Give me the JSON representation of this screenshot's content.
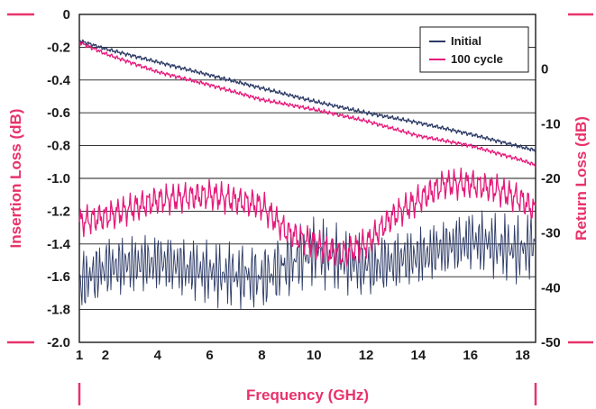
{
  "chart_data": {
    "type": "line",
    "xlabel": "Frequency (GHz)",
    "ylabel_left": "Insertion Loss (dB)",
    "ylabel_right": "Return Loss (dB)",
    "xlim": [
      1,
      18.5
    ],
    "ylim_left": [
      -2.0,
      0
    ],
    "ylim_right": [
      -50,
      10
    ],
    "x_ticks": [
      "1",
      "2",
      "4",
      "6",
      "8",
      "10",
      "12",
      "14",
      "16",
      "18"
    ],
    "y_left_ticks": [
      "0",
      "-0.2",
      "-0.4",
      "-0.6",
      "-0.8",
      "-1.0",
      "-1.2",
      "-1.4",
      "-1.6",
      "-1.8",
      "-2.0"
    ],
    "y_right_ticks": [
      "0",
      "-10",
      "-20",
      "-30",
      "-40",
      "-50"
    ],
    "grid": true,
    "legend_position": "top-right",
    "colors": {
      "initial": "#2c3a66",
      "cycle100": "#e6197a",
      "accent": "#e8336b"
    },
    "series": [
      {
        "name": "Initial",
        "axis": "left",
        "x": [
          1,
          2,
          4,
          6,
          8,
          10,
          12,
          14,
          16,
          18,
          18.5
        ],
        "values": [
          -0.16,
          -0.21,
          -0.29,
          -0.37,
          -0.45,
          -0.53,
          -0.6,
          -0.66,
          -0.73,
          -0.81,
          -0.83
        ]
      },
      {
        "name": "100 cycle",
        "axis": "left",
        "x": [
          1,
          2,
          4,
          6,
          8,
          10,
          12,
          14,
          16,
          18,
          18.5
        ],
        "values": [
          -0.17,
          -0.24,
          -0.35,
          -0.43,
          -0.52,
          -0.58,
          -0.65,
          -0.74,
          -0.8,
          -0.89,
          -0.92
        ]
      },
      {
        "name": "Initial",
        "axis": "right",
        "x": [
          1,
          2,
          4,
          6,
          8,
          10,
          12,
          14,
          16,
          18,
          18.5
        ],
        "values": [
          -38,
          -35,
          -34,
          -36,
          -37,
          -32,
          -35,
          -33,
          -30,
          -32,
          -30
        ]
      },
      {
        "name": "100 cycle",
        "axis": "right",
        "x": [
          1,
          2,
          4,
          6,
          8,
          9,
          10,
          11,
          12,
          13,
          14,
          15,
          16,
          17,
          18,
          18.5
        ],
        "values": [
          -28,
          -27,
          -24,
          -23,
          -25,
          -30,
          -32,
          -34,
          -32,
          -27,
          -24,
          -21,
          -21,
          -22,
          -24,
          -26
        ]
      }
    ]
  }
}
